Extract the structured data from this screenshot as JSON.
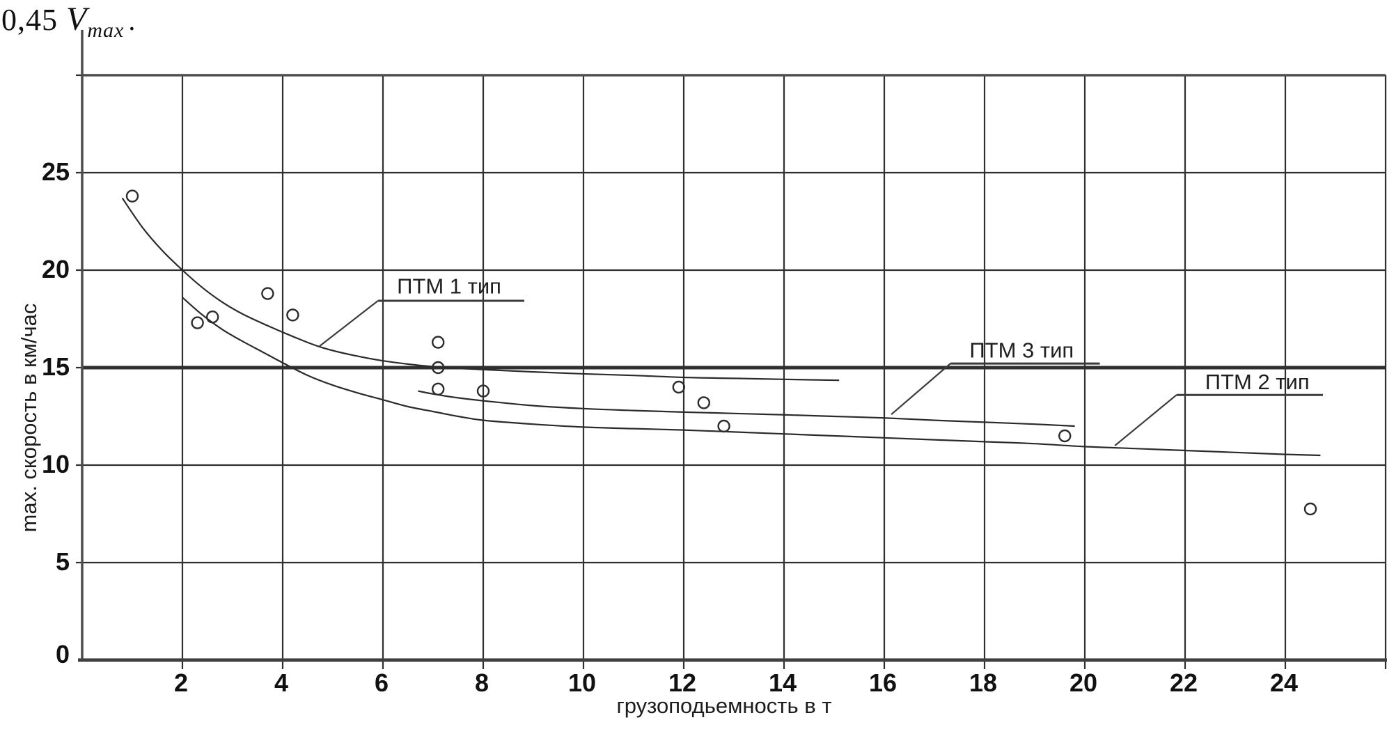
{
  "title": {
    "prefix": "0,45",
    "variable": "V",
    "subscript": "max",
    "period": "."
  },
  "colors": {
    "grid": "#2f2f2f",
    "axis": "#4d4d4d",
    "ink": "#2b2b2b",
    "text": "#111111",
    "annotation": "#3a3a3a"
  },
  "chart_data": {
    "type": "line",
    "title": "0,45 Vmax.",
    "xlabel": "грузоподьемность в т",
    "ylabel": "max. скорость в км/час",
    "xlim": [
      0,
      26
    ],
    "ylim": [
      0,
      30
    ],
    "grid": true,
    "x_gridlines": [
      0,
      2,
      4,
      6,
      8,
      10,
      12,
      14,
      16,
      18,
      20,
      22,
      24,
      26
    ],
    "y_gridlines": [
      0,
      5,
      10,
      15,
      20,
      25,
      30
    ],
    "x_ticks": [
      2,
      4,
      6,
      8,
      10,
      12,
      14,
      16,
      18,
      20,
      22,
      24
    ],
    "y_ticks": [
      0,
      5,
      10,
      15,
      20,
      25
    ],
    "highlight_y": 15,
    "series": [
      {
        "name": "ПТМ 1 тип",
        "points": [
          [
            0.8,
            23.7
          ],
          [
            1.2,
            22.2
          ],
          [
            1.6,
            21.0
          ],
          [
            2.0,
            20.0
          ],
          [
            2.4,
            19.1
          ],
          [
            2.8,
            18.35
          ],
          [
            3.2,
            17.75
          ],
          [
            3.7,
            17.15
          ],
          [
            4.2,
            16.6
          ],
          [
            4.7,
            16.1
          ],
          [
            5.2,
            15.75
          ],
          [
            6.0,
            15.35
          ],
          [
            7.0,
            15.05
          ],
          [
            8.0,
            14.9
          ],
          [
            9.0,
            14.78
          ],
          [
            10.0,
            14.68
          ],
          [
            11.0,
            14.6
          ],
          [
            12.0,
            14.5
          ],
          [
            13.0,
            14.45
          ],
          [
            14.0,
            14.4
          ],
          [
            15.1,
            14.35
          ]
        ]
      },
      {
        "name": "ПТМ 2 тип",
        "points": [
          [
            2.0,
            18.6
          ],
          [
            2.4,
            17.7
          ],
          [
            2.8,
            16.95
          ],
          [
            3.2,
            16.35
          ],
          [
            3.6,
            15.8
          ],
          [
            4.0,
            15.25
          ],
          [
            4.5,
            14.6
          ],
          [
            5.0,
            14.1
          ],
          [
            5.5,
            13.7
          ],
          [
            6.0,
            13.35
          ],
          [
            6.5,
            13.0
          ],
          [
            7.0,
            12.75
          ],
          [
            7.5,
            12.5
          ],
          [
            8.0,
            12.3
          ],
          [
            9.0,
            12.1
          ],
          [
            10.0,
            11.95
          ],
          [
            11.0,
            11.87
          ],
          [
            12.0,
            11.8
          ],
          [
            13.0,
            11.7
          ],
          [
            14.0,
            11.6
          ],
          [
            15.0,
            11.5
          ],
          [
            16.0,
            11.4
          ],
          [
            17.0,
            11.3
          ],
          [
            18.0,
            11.2
          ],
          [
            19.0,
            11.1
          ],
          [
            20.0,
            10.95
          ],
          [
            21.0,
            10.85
          ],
          [
            22.0,
            10.75
          ],
          [
            23.0,
            10.65
          ],
          [
            24.0,
            10.55
          ],
          [
            24.7,
            10.5
          ]
        ]
      },
      {
        "name": "ПТМ 3 тип",
        "points": [
          [
            6.7,
            13.8
          ],
          [
            7.0,
            13.65
          ],
          [
            7.5,
            13.45
          ],
          [
            8.0,
            13.3
          ],
          [
            9.0,
            13.05
          ],
          [
            10.0,
            12.9
          ],
          [
            11.0,
            12.8
          ],
          [
            12.0,
            12.72
          ],
          [
            13.0,
            12.65
          ],
          [
            14.0,
            12.58
          ],
          [
            15.0,
            12.5
          ],
          [
            16.0,
            12.42
          ],
          [
            17.0,
            12.3
          ],
          [
            18.0,
            12.2
          ],
          [
            19.0,
            12.1
          ],
          [
            19.8,
            12.0
          ]
        ]
      }
    ],
    "scatter": [
      [
        1.0,
        23.8
      ],
      [
        2.3,
        17.3
      ],
      [
        2.6,
        17.6
      ],
      [
        3.7,
        18.8
      ],
      [
        4.2,
        17.7
      ],
      [
        7.1,
        16.3
      ],
      [
        7.1,
        15.0
      ],
      [
        7.1,
        13.9
      ],
      [
        8.0,
        13.8
      ],
      [
        11.9,
        14.0
      ],
      [
        12.4,
        13.2
      ],
      [
        12.8,
        12.0
      ],
      [
        19.6,
        11.5
      ],
      [
        24.5,
        7.75
      ]
    ],
    "annotations": [
      {
        "label": "ПТМ 1 тип",
        "text_x": 6.28,
        "text_y": 18.8,
        "underline": [
          5.9,
          8.82,
          18.43
        ],
        "leader": [
          5.9,
          18.43,
          4.72,
          16.07
        ]
      },
      {
        "label": "ПТМ 3 тип",
        "text_x": 17.7,
        "text_y": 15.52,
        "underline": [
          17.32,
          20.3,
          15.21
        ],
        "leader": [
          17.32,
          15.21,
          16.14,
          12.6
        ]
      },
      {
        "label": "ПТМ 2 тип",
        "text_x": 22.4,
        "text_y": 13.9,
        "underline": [
          21.83,
          24.75,
          13.6
        ],
        "leader": [
          21.83,
          13.6,
          20.6,
          11.0
        ]
      }
    ]
  }
}
